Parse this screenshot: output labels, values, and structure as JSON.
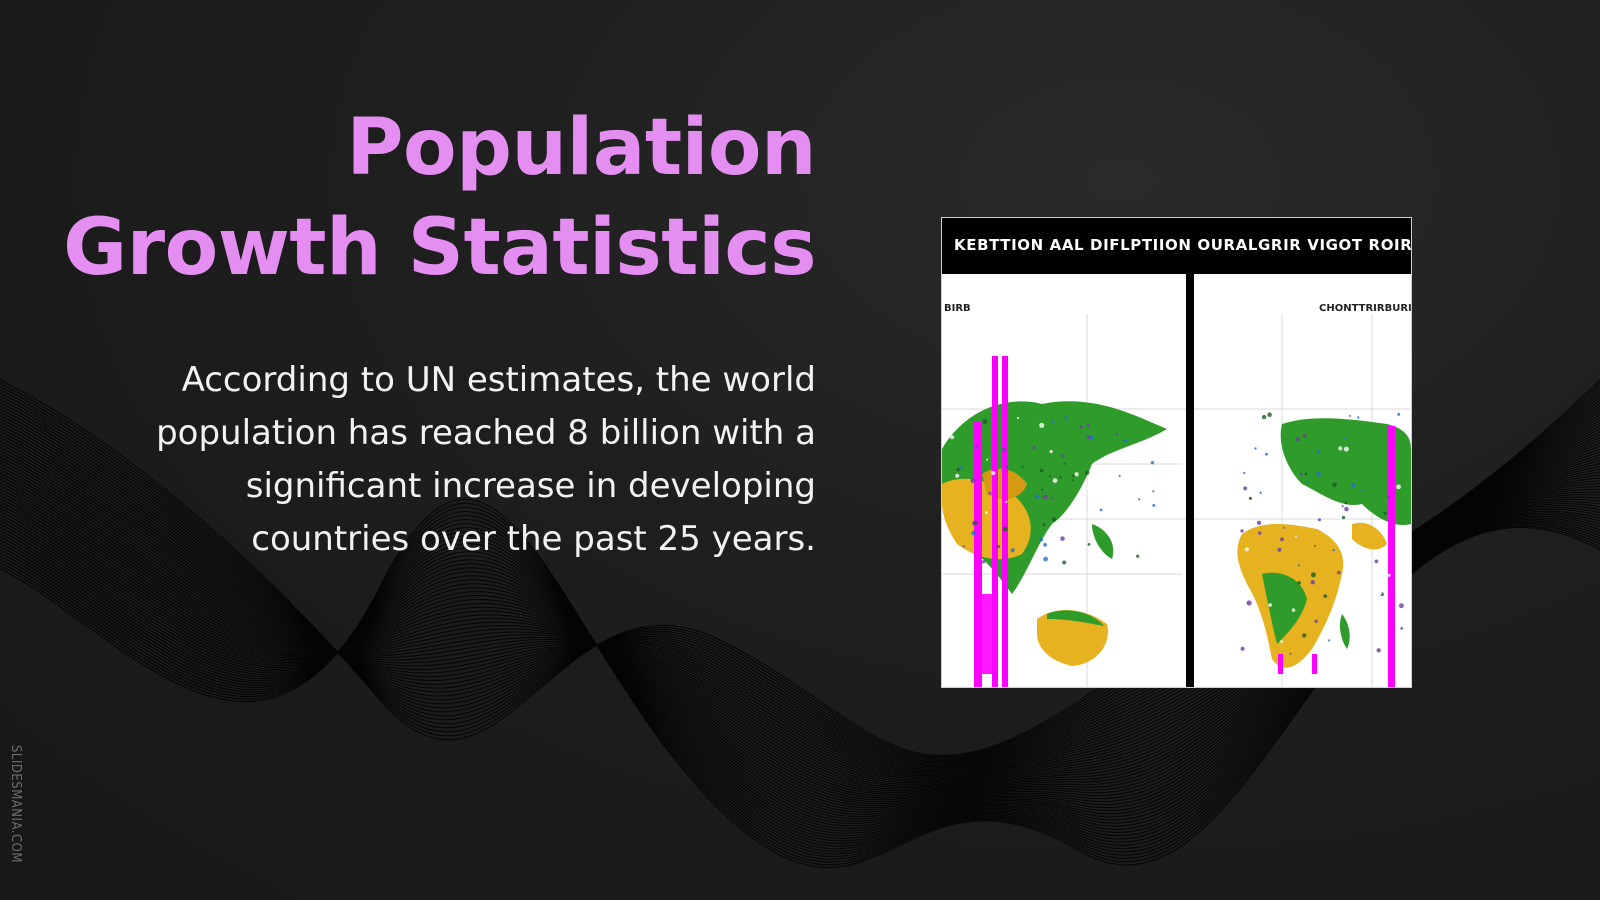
{
  "slide": {
    "title_line1": "Population",
    "title_line2": "Growth Statistics",
    "body_lines": [
      "According to UN estimates, the world",
      "population has reached 8 billion with a",
      "significant increase in developing",
      "countries over the past 25 years."
    ],
    "watermark": "SLIDESMANIA.COM"
  },
  "figure": {
    "header": "KEBTTION AAL DIFLPTIION OURALGRIR VIGOT ROIRO",
    "left_label": "BIRB",
    "right_label": "CHONTTRIRBURI"
  },
  "colors": {
    "title": "#e38ef0",
    "body_text": "#f2f2f2",
    "background": "#1c1c1c",
    "figure_bars": "#ff00ff",
    "figure_land_green": "#2e9b2a",
    "figure_land_yellow": "#e6b220"
  },
  "icons": [
    "wave-lines-decoration"
  ]
}
